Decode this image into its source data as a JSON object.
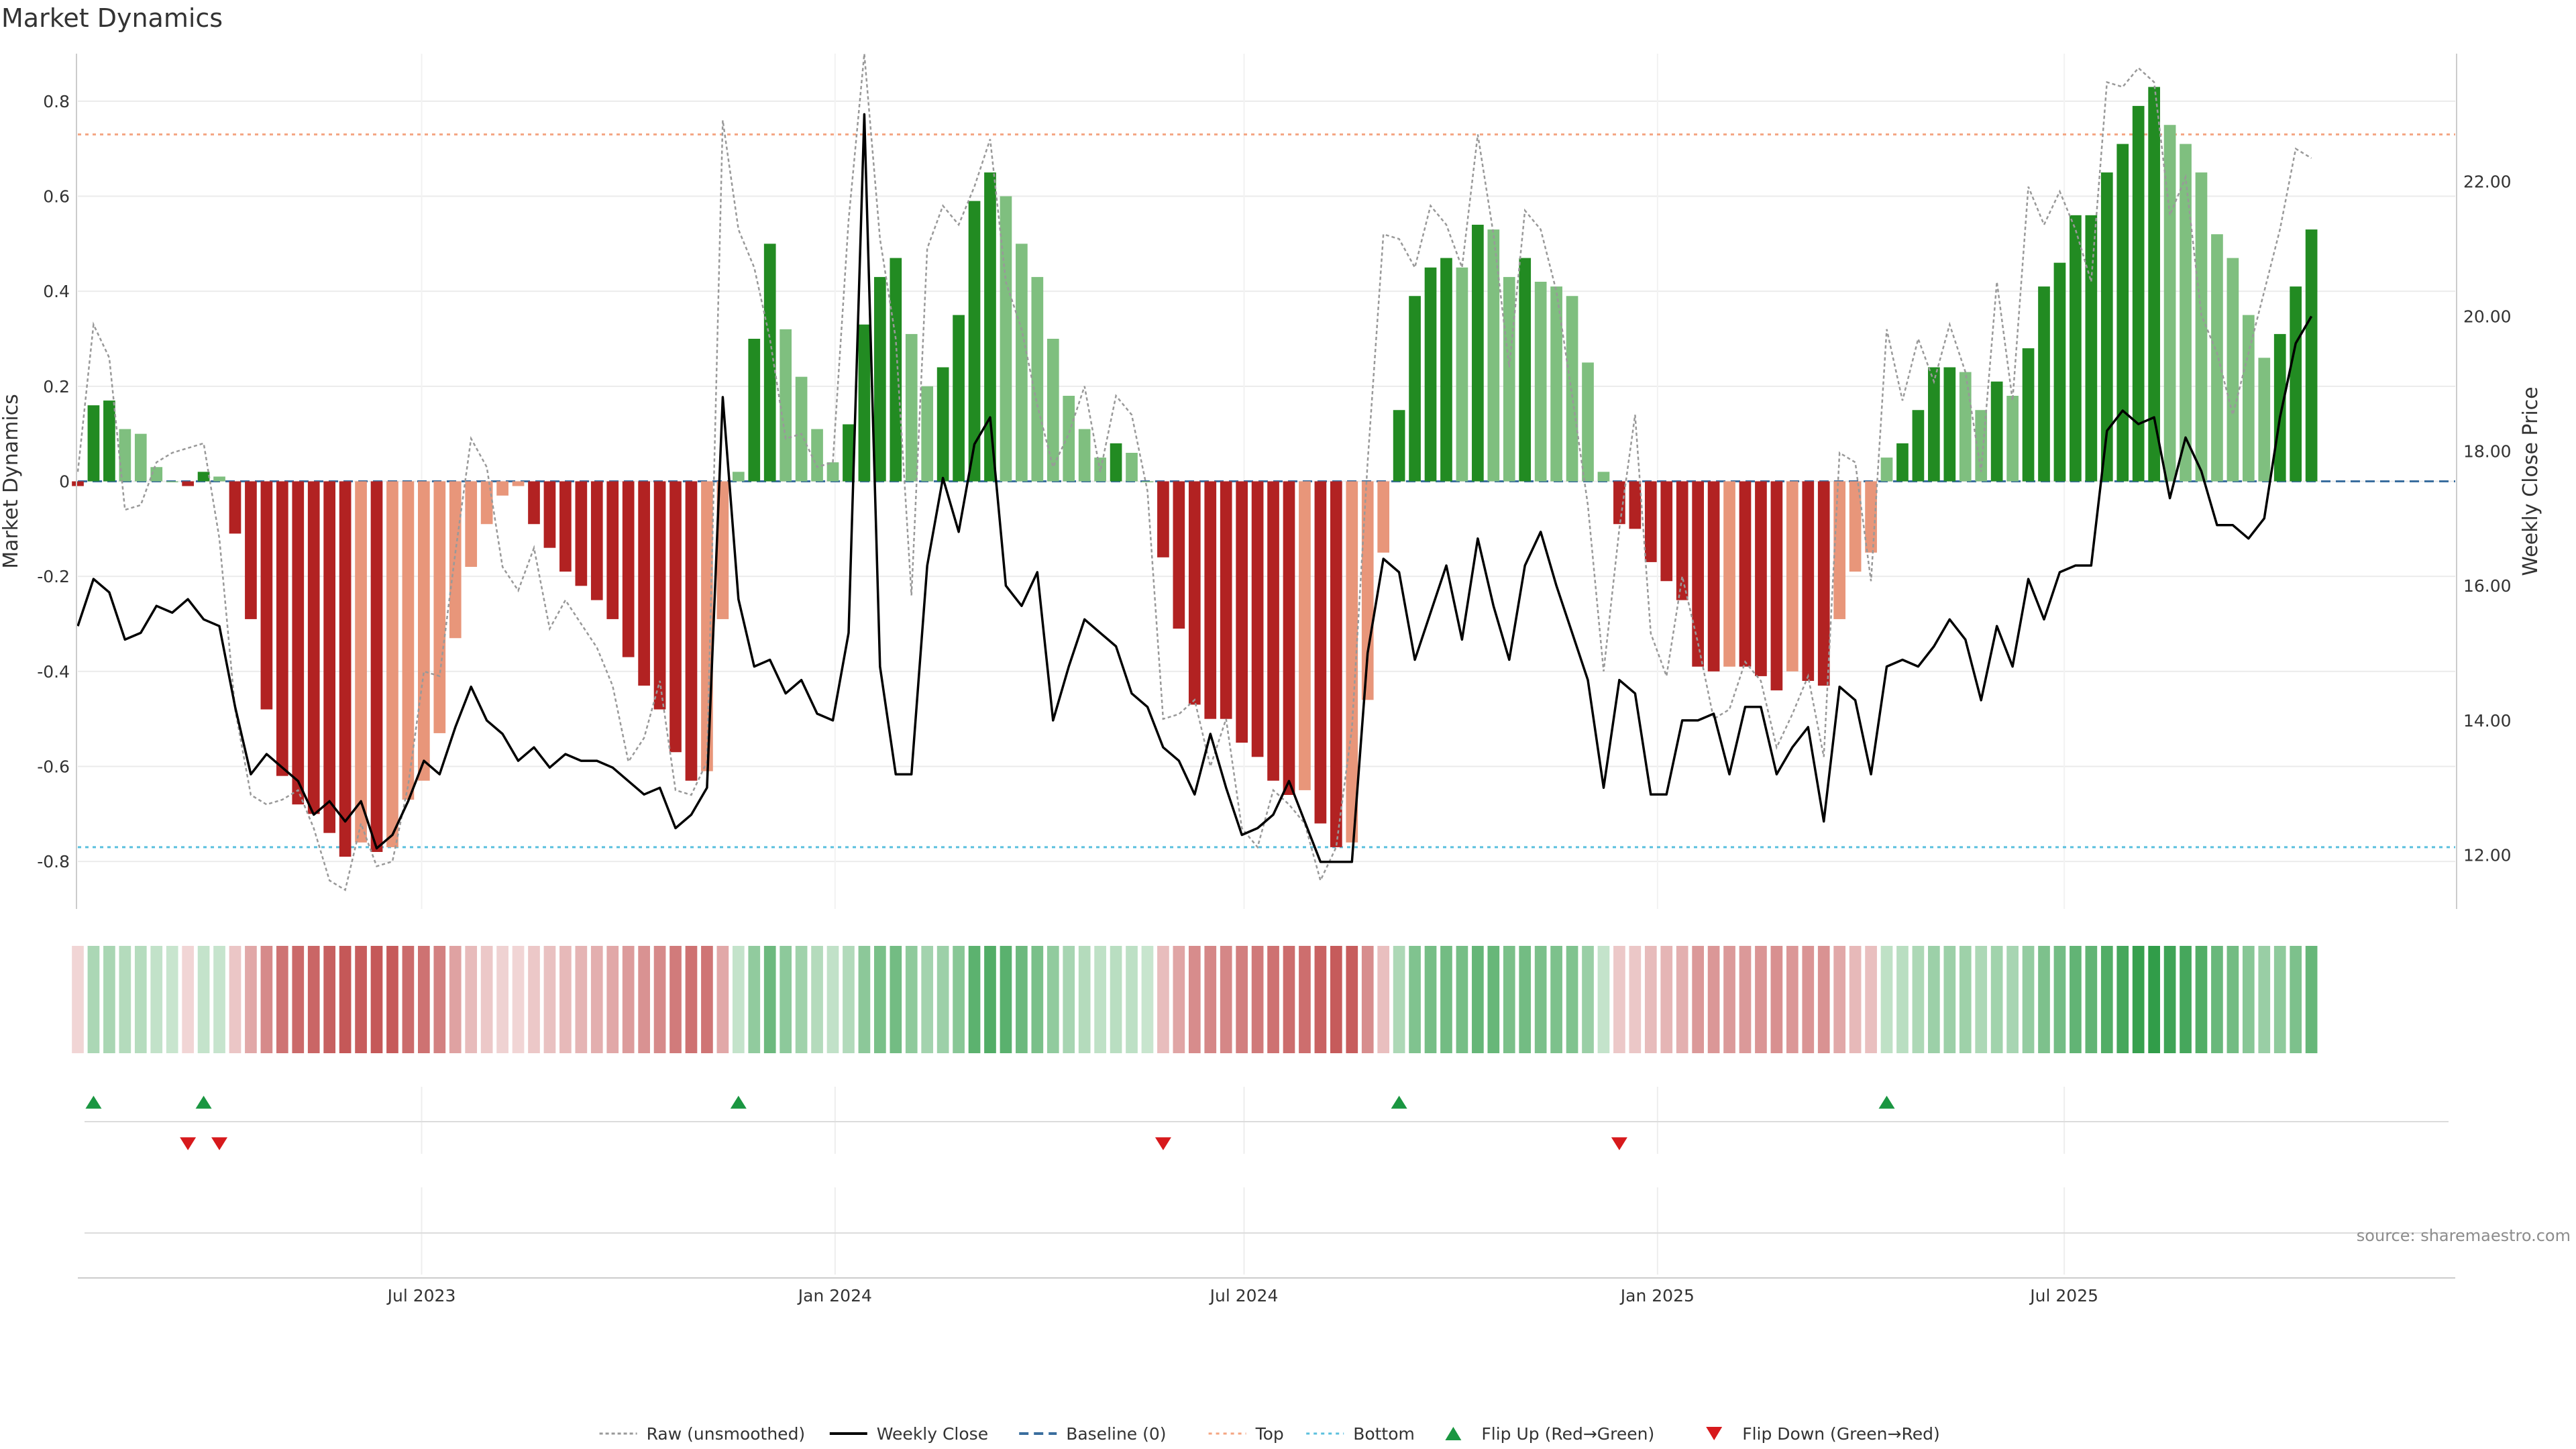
{
  "title": "Market Dynamics",
  "source": "source: sharemaestro.com",
  "chart_data": {
    "type": "bar",
    "ylabel_left": "Market Dynamics",
    "ylabel_right": "Weekly Close Price",
    "ylim_left": [
      -0.9,
      0.9
    ],
    "ylim_right": [
      11.2,
      23.9
    ],
    "yticks_left": [
      -0.8,
      -0.6,
      -0.4,
      -0.2,
      0,
      0.2,
      0.4,
      0.6,
      0.8
    ],
    "yticks_right": [
      12,
      14,
      16,
      18,
      20,
      22
    ],
    "x_start": "2023-01-29",
    "x_end": "2025-12-22",
    "xticks": [
      {
        "date": "2023-07-01",
        "label": "Jul 2023"
      },
      {
        "date": "2024-01-01",
        "label": "Jan 2024"
      },
      {
        "date": "2024-07-01",
        "label": "Jul 2024"
      },
      {
        "date": "2025-01-01",
        "label": "Jan 2025"
      },
      {
        "date": "2025-07-01",
        "label": "Jul 2025"
      }
    ],
    "top_level": 0.73,
    "bottom_level": -0.77,
    "grid": true,
    "legend_position": "bottom-center",
    "colors": {
      "green_strong": "#228b22",
      "green_light": "#7fbf7f",
      "red_strong": "#b22222",
      "red_light": "#e8967a",
      "close_line": "#000000",
      "raw_line": "#999999",
      "baseline": "#3a6e9e",
      "top": "#f4a582",
      "bottom": "#5bc0de",
      "flip_up": "#1a9641",
      "flip_down": "#d7191c"
    },
    "weeks": [
      {
        "date": "2023-01-29",
        "value": -0.01,
        "close": 15.4,
        "raw": 0.02
      },
      {
        "date": "2023-02-05",
        "value": 0.16,
        "close": 16.1,
        "raw": 0.33
      },
      {
        "date": "2023-02-12",
        "value": 0.17,
        "close": 15.9,
        "raw": 0.26
      },
      {
        "date": "2023-02-19",
        "value": 0.11,
        "close": 15.2,
        "raw": -0.06
      },
      {
        "date": "2023-02-26",
        "value": 0.1,
        "close": 15.3,
        "raw": -0.05
      },
      {
        "date": "2023-03-05",
        "value": 0.03,
        "close": 15.7,
        "raw": 0.04
      },
      {
        "date": "2023-03-12",
        "value": 0.0,
        "close": 15.6,
        "raw": 0.06
      },
      {
        "date": "2023-03-19",
        "value": -0.01,
        "close": 15.8,
        "raw": 0.07
      },
      {
        "date": "2023-03-26",
        "value": 0.02,
        "close": 15.5,
        "raw": 0.08
      },
      {
        "date": "2023-04-02",
        "value": 0.01,
        "close": 15.4,
        "raw": -0.12
      },
      {
        "date": "2023-04-09",
        "value": -0.11,
        "close": 14.2,
        "raw": -0.48
      },
      {
        "date": "2023-04-16",
        "value": -0.29,
        "close": 13.2,
        "raw": -0.66
      },
      {
        "date": "2023-04-23",
        "value": -0.48,
        "close": 13.5,
        "raw": -0.68
      },
      {
        "date": "2023-04-30",
        "value": -0.62,
        "close": 13.3,
        "raw": -0.67
      },
      {
        "date": "2023-05-07",
        "value": -0.68,
        "close": 13.1,
        "raw": -0.65
      },
      {
        "date": "2023-05-14",
        "value": -0.7,
        "close": 12.6,
        "raw": -0.73
      },
      {
        "date": "2023-05-21",
        "value": -0.74,
        "close": 12.8,
        "raw": -0.84
      },
      {
        "date": "2023-05-28",
        "value": -0.79,
        "close": 12.5,
        "raw": -0.86
      },
      {
        "date": "2023-06-04",
        "value": -0.76,
        "close": 12.8,
        "raw": -0.72
      },
      {
        "date": "2023-06-11",
        "value": -0.78,
        "close": 12.1,
        "raw": -0.81
      },
      {
        "date": "2023-06-18",
        "value": -0.77,
        "close": 12.3,
        "raw": -0.8
      },
      {
        "date": "2023-06-25",
        "value": -0.67,
        "close": 12.8,
        "raw": -0.64
      },
      {
        "date": "2023-07-02",
        "value": -0.63,
        "close": 13.4,
        "raw": -0.4
      },
      {
        "date": "2023-07-09",
        "value": -0.53,
        "close": 13.2,
        "raw": -0.41
      },
      {
        "date": "2023-07-16",
        "value": -0.33,
        "close": 13.9,
        "raw": -0.15
      },
      {
        "date": "2023-07-23",
        "value": -0.18,
        "close": 14.5,
        "raw": 0.09
      },
      {
        "date": "2023-07-30",
        "value": -0.09,
        "close": 14.0,
        "raw": 0.03
      },
      {
        "date": "2023-08-06",
        "value": -0.03,
        "close": 13.8,
        "raw": -0.18
      },
      {
        "date": "2023-08-13",
        "value": -0.01,
        "close": 13.4,
        "raw": -0.23
      },
      {
        "date": "2023-08-20",
        "value": -0.09,
        "close": 13.6,
        "raw": -0.14
      },
      {
        "date": "2023-08-27",
        "value": -0.14,
        "close": 13.3,
        "raw": -0.31
      },
      {
        "date": "2023-09-03",
        "value": -0.19,
        "close": 13.5,
        "raw": -0.25
      },
      {
        "date": "2023-09-10",
        "value": -0.22,
        "close": 13.4,
        "raw": -0.3
      },
      {
        "date": "2023-09-17",
        "value": -0.25,
        "close": 13.4,
        "raw": -0.35
      },
      {
        "date": "2023-09-24",
        "value": -0.29,
        "close": 13.3,
        "raw": -0.43
      },
      {
        "date": "2023-10-01",
        "value": -0.37,
        "close": 13.1,
        "raw": -0.59
      },
      {
        "date": "2023-10-08",
        "value": -0.43,
        "close": 12.9,
        "raw": -0.54
      },
      {
        "date": "2023-10-15",
        "value": -0.48,
        "close": 13.0,
        "raw": -0.42
      },
      {
        "date": "2023-10-22",
        "value": -0.57,
        "close": 12.4,
        "raw": -0.65
      },
      {
        "date": "2023-10-29",
        "value": -0.63,
        "close": 12.6,
        "raw": -0.66
      },
      {
        "date": "2023-11-05",
        "value": -0.61,
        "close": 13.0,
        "raw": -0.59
      },
      {
        "date": "2023-11-12",
        "value": -0.29,
        "close": 18.8,
        "raw": 0.76
      },
      {
        "date": "2023-11-19",
        "value": 0.02,
        "close": 15.8,
        "raw": 0.53
      },
      {
        "date": "2023-11-26",
        "value": 0.3,
        "close": 14.8,
        "raw": 0.45
      },
      {
        "date": "2023-12-03",
        "value": 0.5,
        "close": 14.9,
        "raw": 0.3
      },
      {
        "date": "2023-12-10",
        "value": 0.32,
        "close": 14.4,
        "raw": 0.09
      },
      {
        "date": "2023-12-17",
        "value": 0.22,
        "close": 14.6,
        "raw": 0.1
      },
      {
        "date": "2023-12-24",
        "value": 0.11,
        "close": 14.1,
        "raw": 0.03
      },
      {
        "date": "2023-12-31",
        "value": 0.04,
        "close": 14.0,
        "raw": 0.04
      },
      {
        "date": "2024-01-07",
        "value": 0.12,
        "close": 15.3,
        "raw": 0.55
      },
      {
        "date": "2024-01-14",
        "value": 0.33,
        "close": 23.0,
        "raw": 0.9
      },
      {
        "date": "2024-01-21",
        "value": 0.43,
        "close": 14.8,
        "raw": 0.51
      },
      {
        "date": "2024-01-28",
        "value": 0.47,
        "close": 13.2,
        "raw": 0.3
      },
      {
        "date": "2024-02-04",
        "value": 0.31,
        "close": 13.2,
        "raw": -0.24
      },
      {
        "date": "2024-02-11",
        "value": 0.2,
        "close": 16.3,
        "raw": 0.49
      },
      {
        "date": "2024-02-18",
        "value": 0.24,
        "close": 17.6,
        "raw": 0.58
      },
      {
        "date": "2024-02-25",
        "value": 0.35,
        "close": 16.8,
        "raw": 0.54
      },
      {
        "date": "2024-03-03",
        "value": 0.59,
        "close": 18.1,
        "raw": 0.62
      },
      {
        "date": "2024-03-10",
        "value": 0.65,
        "close": 18.5,
        "raw": 0.72
      },
      {
        "date": "2024-03-17",
        "value": 0.6,
        "close": 16.0,
        "raw": 0.42
      },
      {
        "date": "2024-03-24",
        "value": 0.5,
        "close": 15.7,
        "raw": 0.32
      },
      {
        "date": "2024-03-31",
        "value": 0.43,
        "close": 16.2,
        "raw": 0.16
      },
      {
        "date": "2024-04-07",
        "value": 0.3,
        "close": 14.0,
        "raw": 0.03
      },
      {
        "date": "2024-04-14",
        "value": 0.18,
        "close": 14.8,
        "raw": 0.1
      },
      {
        "date": "2024-04-21",
        "value": 0.11,
        "close": 15.5,
        "raw": 0.2
      },
      {
        "date": "2024-04-28",
        "value": 0.05,
        "close": 15.3,
        "raw": 0.02
      },
      {
        "date": "2024-05-05",
        "value": 0.08,
        "close": 15.1,
        "raw": 0.18
      },
      {
        "date": "2024-05-12",
        "value": 0.06,
        "close": 14.4,
        "raw": 0.14
      },
      {
        "date": "2024-05-19",
        "value": 0.0,
        "close": 14.2,
        "raw": -0.02
      },
      {
        "date": "2024-05-26",
        "value": -0.16,
        "close": 13.6,
        "raw": -0.5
      },
      {
        "date": "2024-06-02",
        "value": -0.31,
        "close": 13.4,
        "raw": -0.49
      },
      {
        "date": "2024-06-09",
        "value": -0.47,
        "close": 12.9,
        "raw": -0.46
      },
      {
        "date": "2024-06-16",
        "value": -0.5,
        "close": 13.8,
        "raw": -0.6
      },
      {
        "date": "2024-06-23",
        "value": -0.5,
        "close": 13.0,
        "raw": -0.5
      },
      {
        "date": "2024-06-30",
        "value": -0.55,
        "close": 12.3,
        "raw": -0.73
      },
      {
        "date": "2024-07-07",
        "value": -0.58,
        "close": 12.4,
        "raw": -0.77
      },
      {
        "date": "2024-07-14",
        "value": -0.63,
        "close": 12.6,
        "raw": -0.65
      },
      {
        "date": "2024-07-21",
        "value": -0.66,
        "close": 13.1,
        "raw": -0.68
      },
      {
        "date": "2024-07-28",
        "value": -0.65,
        "close": 12.5,
        "raw": -0.72
      },
      {
        "date": "2024-08-04",
        "value": -0.72,
        "close": 11.9,
        "raw": -0.84
      },
      {
        "date": "2024-08-11",
        "value": -0.77,
        "close": 11.9,
        "raw": -0.77
      },
      {
        "date": "2024-08-18",
        "value": -0.76,
        "close": 11.9,
        "raw": -0.52
      },
      {
        "date": "2024-08-25",
        "value": -0.46,
        "close": 15.0,
        "raw": 0.04
      },
      {
        "date": "2024-09-01",
        "value": -0.15,
        "close": 16.4,
        "raw": 0.52
      },
      {
        "date": "2024-09-08",
        "value": 0.15,
        "close": 16.2,
        "raw": 0.51
      },
      {
        "date": "2024-09-15",
        "value": 0.39,
        "close": 14.9,
        "raw": 0.45
      },
      {
        "date": "2024-09-22",
        "value": 0.45,
        "close": 15.6,
        "raw": 0.58
      },
      {
        "date": "2024-09-29",
        "value": 0.47,
        "close": 16.3,
        "raw": 0.54
      },
      {
        "date": "2024-10-06",
        "value": 0.45,
        "close": 15.2,
        "raw": 0.45
      },
      {
        "date": "2024-10-13",
        "value": 0.54,
        "close": 16.7,
        "raw": 0.73
      },
      {
        "date": "2024-10-20",
        "value": 0.53,
        "close": 15.7,
        "raw": 0.52
      },
      {
        "date": "2024-10-27",
        "value": 0.43,
        "close": 14.9,
        "raw": 0.24
      },
      {
        "date": "2024-11-03",
        "value": 0.47,
        "close": 16.3,
        "raw": 0.57
      },
      {
        "date": "2024-11-10",
        "value": 0.42,
        "close": 16.8,
        "raw": 0.53
      },
      {
        "date": "2024-11-17",
        "value": 0.41,
        "close": 16.0,
        "raw": 0.4
      },
      {
        "date": "2024-11-24",
        "value": 0.39,
        "close": 15.3,
        "raw": 0.18
      },
      {
        "date": "2024-12-01",
        "value": 0.25,
        "close": 14.6,
        "raw": -0.05
      },
      {
        "date": "2024-12-08",
        "value": 0.02,
        "close": 13.0,
        "raw": -0.4
      },
      {
        "date": "2024-12-15",
        "value": -0.09,
        "close": 14.6,
        "raw": -0.1
      },
      {
        "date": "2024-12-22",
        "value": -0.1,
        "close": 14.4,
        "raw": 0.14
      },
      {
        "date": "2024-12-29",
        "value": -0.17,
        "close": 12.9,
        "raw": -0.32
      },
      {
        "date": "2025-01-05",
        "value": -0.21,
        "close": 12.9,
        "raw": -0.41
      },
      {
        "date": "2025-01-12",
        "value": -0.25,
        "close": 14.0,
        "raw": -0.2
      },
      {
        "date": "2025-01-19",
        "value": -0.39,
        "close": 14.0,
        "raw": -0.34
      },
      {
        "date": "2025-01-26",
        "value": -0.4,
        "close": 14.1,
        "raw": -0.5
      },
      {
        "date": "2025-02-02",
        "value": -0.39,
        "close": 13.2,
        "raw": -0.48
      },
      {
        "date": "2025-02-09",
        "value": -0.39,
        "close": 14.2,
        "raw": -0.38
      },
      {
        "date": "2025-02-16",
        "value": -0.41,
        "close": 14.2,
        "raw": -0.42
      },
      {
        "date": "2025-02-23",
        "value": -0.44,
        "close": 13.2,
        "raw": -0.56
      },
      {
        "date": "2025-03-02",
        "value": -0.4,
        "close": 13.6,
        "raw": -0.49
      },
      {
        "date": "2025-03-09",
        "value": -0.42,
        "close": 13.9,
        "raw": -0.41
      },
      {
        "date": "2025-03-16",
        "value": -0.43,
        "close": 12.5,
        "raw": -0.58
      },
      {
        "date": "2025-03-23",
        "value": -0.29,
        "close": 14.5,
        "raw": 0.06
      },
      {
        "date": "2025-03-30",
        "value": -0.19,
        "close": 14.3,
        "raw": 0.04
      },
      {
        "date": "2025-04-06",
        "value": -0.15,
        "close": 13.2,
        "raw": -0.21
      },
      {
        "date": "2025-04-13",
        "value": 0.05,
        "close": 14.8,
        "raw": 0.32
      },
      {
        "date": "2025-04-20",
        "value": 0.08,
        "close": 14.9,
        "raw": 0.17
      },
      {
        "date": "2025-04-27",
        "value": 0.15,
        "close": 14.8,
        "raw": 0.3
      },
      {
        "date": "2025-05-04",
        "value": 0.24,
        "close": 15.1,
        "raw": 0.21
      },
      {
        "date": "2025-05-11",
        "value": 0.24,
        "close": 15.5,
        "raw": 0.33
      },
      {
        "date": "2025-05-18",
        "value": 0.23,
        "close": 15.2,
        "raw": 0.23
      },
      {
        "date": "2025-05-25",
        "value": 0.15,
        "close": 14.3,
        "raw": 0.02
      },
      {
        "date": "2025-06-01",
        "value": 0.21,
        "close": 15.4,
        "raw": 0.42
      },
      {
        "date": "2025-06-08",
        "value": 0.18,
        "close": 14.8,
        "raw": 0.17
      },
      {
        "date": "2025-06-15",
        "value": 0.28,
        "close": 16.1,
        "raw": 0.62
      },
      {
        "date": "2025-06-22",
        "value": 0.41,
        "close": 15.5,
        "raw": 0.54
      },
      {
        "date": "2025-06-29",
        "value": 0.46,
        "close": 16.2,
        "raw": 0.61
      },
      {
        "date": "2025-07-06",
        "value": 0.56,
        "close": 16.3,
        "raw": 0.53
      },
      {
        "date": "2025-07-13",
        "value": 0.56,
        "close": 16.3,
        "raw": 0.42
      },
      {
        "date": "2025-07-20",
        "value": 0.65,
        "close": 18.3,
        "raw": 0.84
      },
      {
        "date": "2025-07-27",
        "value": 0.71,
        "close": 18.6,
        "raw": 0.83
      },
      {
        "date": "2025-08-03",
        "value": 0.79,
        "close": 18.4,
        "raw": 0.87
      },
      {
        "date": "2025-08-10",
        "value": 0.83,
        "close": 18.5,
        "raw": 0.84
      },
      {
        "date": "2025-08-17",
        "value": 0.75,
        "close": 17.3,
        "raw": 0.56
      },
      {
        "date": "2025-08-24",
        "value": 0.71,
        "close": 18.2,
        "raw": 0.64
      },
      {
        "date": "2025-08-31",
        "value": 0.65,
        "close": 17.7,
        "raw": 0.35
      },
      {
        "date": "2025-09-07",
        "value": 0.52,
        "close": 16.9,
        "raw": 0.27
      },
      {
        "date": "2025-09-14",
        "value": 0.47,
        "close": 16.9,
        "raw": 0.14
      },
      {
        "date": "2025-09-21",
        "value": 0.35,
        "close": 16.7,
        "raw": 0.27
      },
      {
        "date": "2025-09-28",
        "value": 0.26,
        "close": 17.0,
        "raw": 0.4
      },
      {
        "date": "2025-10-05",
        "value": 0.31,
        "close": 18.5,
        "raw": 0.53
      },
      {
        "date": "2025-10-12",
        "value": 0.41,
        "close": 19.6,
        "raw": 0.7
      },
      {
        "date": "2025-10-19",
        "value": 0.53,
        "close": 20.0,
        "raw": 0.68
      }
    ],
    "flip_up_dates": [
      "2023-02-05",
      "2023-03-26",
      "2023-11-19",
      "2024-09-08",
      "2025-04-13"
    ],
    "flip_down_dates": [
      "2023-03-19",
      "2023-04-02",
      "2024-05-26",
      "2024-12-15"
    ]
  },
  "legend": [
    {
      "key": "raw",
      "label": "Raw (unsmoothed)"
    },
    {
      "key": "close",
      "label": "Weekly Close"
    },
    {
      "key": "baseline",
      "label": "Baseline (0)"
    },
    {
      "key": "top",
      "label": "Top"
    },
    {
      "key": "bottom",
      "label": "Bottom"
    },
    {
      "key": "flip_up",
      "label": "Flip Up (Red→Green)"
    },
    {
      "key": "flip_down",
      "label": "Flip Down (Green→Red)"
    }
  ]
}
